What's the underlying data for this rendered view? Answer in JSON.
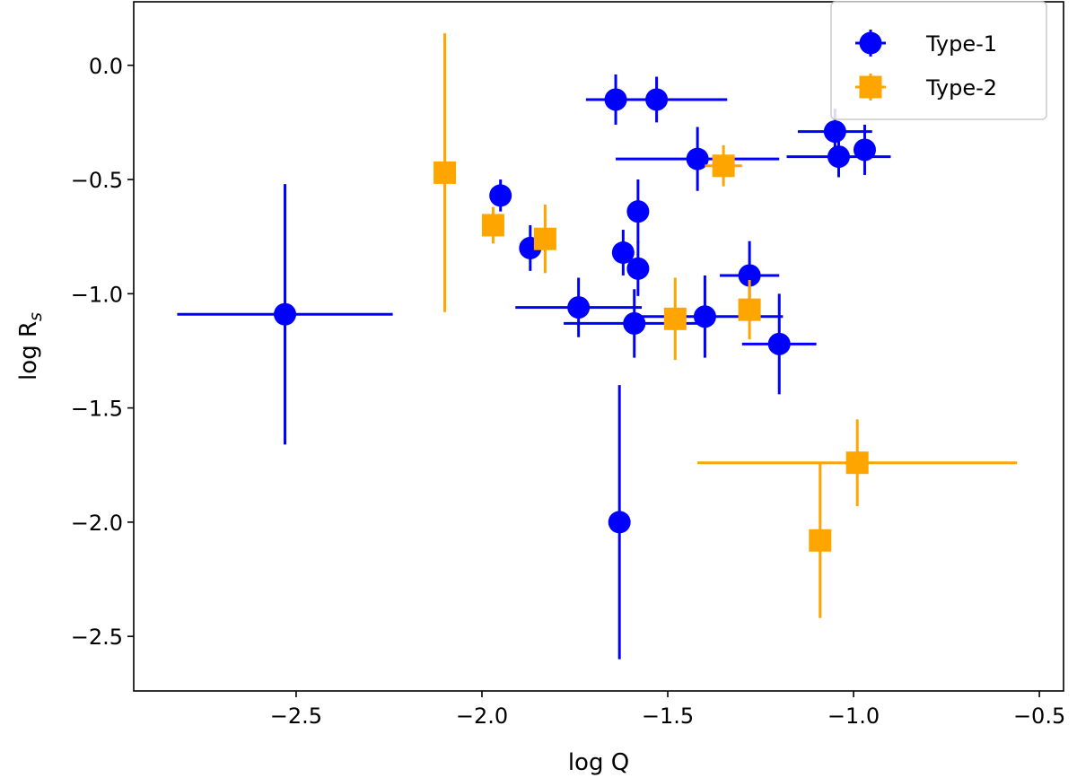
{
  "chart_data": {
    "type": "scatter",
    "xlabel": "log Q",
    "ylabel": "log R",
    "ylabel_sub": "s",
    "xlim": [
      -2.937,
      -0.435
    ],
    "ylim": [
      -2.739,
      0.278
    ],
    "xticks": [
      -2.5,
      -2.0,
      -1.5,
      -1.0,
      -0.5
    ],
    "xtick_labels": [
      "−2.5",
      "−2.0",
      "−1.5",
      "−1.0",
      "−0.5"
    ],
    "yticks": [
      0.0,
      -0.5,
      -1.0,
      -1.5,
      -2.0,
      -2.5
    ],
    "ytick_labels": [
      "0.0",
      "−0.5",
      "−1.0",
      "−1.5",
      "−2.0",
      "−2.5"
    ],
    "grid": false,
    "legend_position": "top-right",
    "series": [
      {
        "name": "Type-1",
        "marker": "circle",
        "color": "#0000ff",
        "points": [
          {
            "x": -2.53,
            "y": -1.09,
            "xerr": 0.29,
            "yerr": 0.57
          },
          {
            "x": -1.95,
            "y": -0.57,
            "xerr": 0,
            "yerr": 0.07
          },
          {
            "x": -1.87,
            "y": -0.8,
            "xerr": 0,
            "yerr": 0.1
          },
          {
            "x": -1.74,
            "y": -1.06,
            "xerr": 0.17,
            "yerr": 0.13
          },
          {
            "x": -1.64,
            "y": -0.15,
            "xerr": 0.08,
            "yerr": 0.11
          },
          {
            "x": -1.63,
            "y": -2.0,
            "xerr": 0,
            "yerr": 0.6
          },
          {
            "x": -1.62,
            "y": -0.82,
            "xerr": 0,
            "yerr": 0.1
          },
          {
            "x": -1.59,
            "y": -1.13,
            "xerr": 0.19,
            "yerr": 0.15
          },
          {
            "x": -1.58,
            "y": -0.64,
            "xerr": 0,
            "yerr": 0.14
          },
          {
            "x": -1.58,
            "y": -0.89,
            "xerr": 0,
            "yerr": 0.12
          },
          {
            "x": -1.53,
            "y": -0.15,
            "xerr": 0.19,
            "yerr": 0.1
          },
          {
            "x": -1.42,
            "y": -0.41,
            "xerr": 0.22,
            "yerr": 0.14
          },
          {
            "x": -1.4,
            "y": -1.1,
            "xerr": 0.21,
            "yerr": 0.18
          },
          {
            "x": -1.28,
            "y": -0.92,
            "xerr": 0.08,
            "yerr": 0.15
          },
          {
            "x": -1.2,
            "y": -1.22,
            "xerr": 0.1,
            "yerr": 0.22
          },
          {
            "x": -1.05,
            "y": -0.29,
            "xerr": 0.1,
            "yerr": 0.1
          },
          {
            "x": -1.04,
            "y": -0.4,
            "xerr": 0.14,
            "yerr": 0.09
          },
          {
            "x": -0.97,
            "y": -0.37,
            "xerr": 0,
            "yerr": 0.11
          }
        ]
      },
      {
        "name": "Type-2",
        "marker": "square",
        "color": "#ffa500",
        "points": [
          {
            "x": -2.1,
            "y": -0.47,
            "xerr": 0,
            "yerr": 0.61
          },
          {
            "x": -1.97,
            "y": -0.7,
            "xerr": 0,
            "yerr": 0.08
          },
          {
            "x": -1.83,
            "y": -0.76,
            "xerr": 0,
            "yerr": 0.15
          },
          {
            "x": -1.48,
            "y": -1.11,
            "xerr": 0,
            "yerr": 0.18
          },
          {
            "x": -1.35,
            "y": -0.44,
            "xerr": 0.05,
            "yerr": 0.09
          },
          {
            "x": -1.28,
            "y": -1.07,
            "xerr": 0,
            "yerr": 0.13
          },
          {
            "x": -1.09,
            "y": -2.08,
            "xerr": 0,
            "yerr": 0.34
          },
          {
            "x": -0.99,
            "y": -1.74,
            "xerr": 0.43,
            "yerr": 0.19
          }
        ]
      }
    ]
  }
}
